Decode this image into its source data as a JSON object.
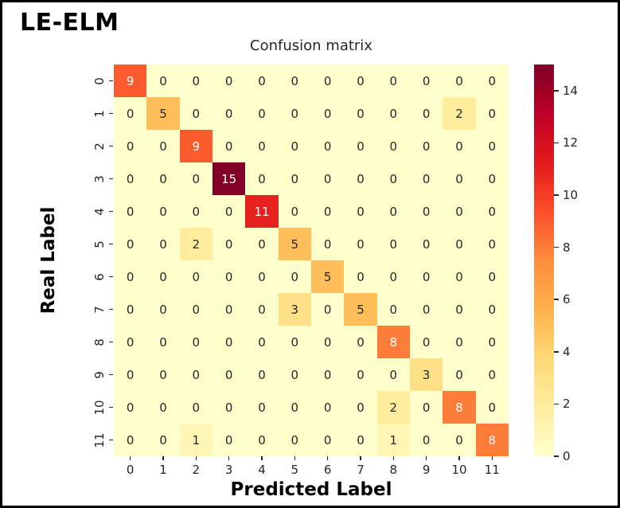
{
  "annotation": {
    "model_label": "LE-ELM"
  },
  "chart_data": {
    "type": "heatmap",
    "title": "Confusion matrix",
    "xlabel": "Predicted Label",
    "ylabel": "Real Label",
    "x_tick_labels": [
      "0",
      "1",
      "2",
      "3",
      "4",
      "5",
      "6",
      "7",
      "8",
      "9",
      "10",
      "11"
    ],
    "y_tick_labels": [
      "0",
      "1",
      "2",
      "3",
      "4",
      "5",
      "6",
      "7",
      "8",
      "9",
      "10",
      "11"
    ],
    "matrix": [
      [
        9,
        0,
        0,
        0,
        0,
        0,
        0,
        0,
        0,
        0,
        0,
        0
      ],
      [
        0,
        5,
        0,
        0,
        0,
        0,
        0,
        0,
        0,
        0,
        2,
        0
      ],
      [
        0,
        0,
        9,
        0,
        0,
        0,
        0,
        0,
        0,
        0,
        0,
        0
      ],
      [
        0,
        0,
        0,
        15,
        0,
        0,
        0,
        0,
        0,
        0,
        0,
        0
      ],
      [
        0,
        0,
        0,
        0,
        11,
        0,
        0,
        0,
        0,
        0,
        0,
        0
      ],
      [
        0,
        0,
        2,
        0,
        0,
        5,
        0,
        0,
        0,
        0,
        0,
        0
      ],
      [
        0,
        0,
        0,
        0,
        0,
        0,
        5,
        0,
        0,
        0,
        0,
        0
      ],
      [
        0,
        0,
        0,
        0,
        0,
        3,
        0,
        5,
        0,
        0,
        0,
        0
      ],
      [
        0,
        0,
        0,
        0,
        0,
        0,
        0,
        0,
        8,
        0,
        0,
        0
      ],
      [
        0,
        0,
        0,
        0,
        0,
        0,
        0,
        0,
        0,
        3,
        0,
        0
      ],
      [
        0,
        0,
        0,
        0,
        0,
        0,
        0,
        0,
        2,
        0,
        8,
        0
      ],
      [
        0,
        0,
        1,
        0,
        0,
        0,
        0,
        0,
        1,
        0,
        0,
        8
      ]
    ],
    "vmin": 0,
    "vmax": 15,
    "grid": false,
    "legend_position": "right-colorbar",
    "colormap_name": "YlOrRd",
    "colormap_anchors": [
      {
        "pos": 0.0,
        "color": "#ffffcc"
      },
      {
        "pos": 0.125,
        "color": "#ffeda0"
      },
      {
        "pos": 0.25,
        "color": "#fed976"
      },
      {
        "pos": 0.375,
        "color": "#feb24c"
      },
      {
        "pos": 0.5,
        "color": "#fd8d3c"
      },
      {
        "pos": 0.625,
        "color": "#fc4e2a"
      },
      {
        "pos": 0.75,
        "color": "#e31a1c"
      },
      {
        "pos": 0.875,
        "color": "#bd0026"
      },
      {
        "pos": 1.0,
        "color": "#800026"
      }
    ],
    "colorbar_ticks": [
      0,
      2,
      4,
      6,
      8,
      10,
      12,
      14
    ],
    "annot_color_light": "#ffffff",
    "annot_color_dark": "#262626"
  }
}
